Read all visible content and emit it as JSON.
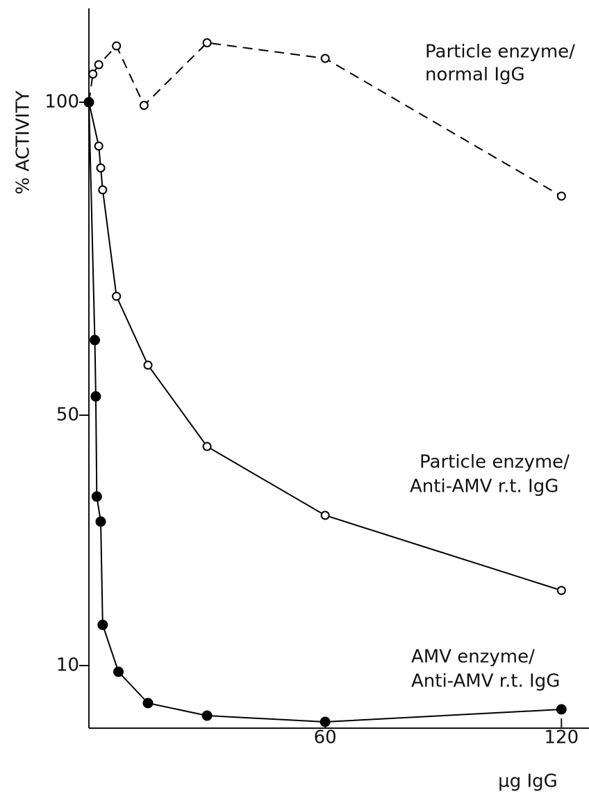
{
  "chart_data": {
    "type": "line",
    "y_label": "% ACTIVITY",
    "x_label": "µg IgG",
    "xlim": [
      0,
      127
    ],
    "xticks": [
      60,
      120
    ],
    "ylim": [
      0,
      115
    ],
    "yticks": [
      10,
      50,
      100
    ],
    "series": [
      {
        "linestyle": "dashed",
        "marker": "open",
        "color": "#000000",
        "x": [
          0,
          1,
          2.5,
          7,
          14,
          30,
          60,
          120
        ],
        "values": [
          100,
          104.5,
          106,
          109,
          99.5,
          109.5,
          107,
          85
        ]
      },
      {
        "linestyle": "solid",
        "marker": "open",
        "color": "#000000",
        "x": [
          0,
          2.5,
          3,
          3.5,
          7,
          15,
          30,
          60,
          120
        ],
        "values": [
          100,
          93,
          89.5,
          86,
          69,
          58,
          45,
          34,
          22
        ]
      },
      {
        "linestyle": "solid",
        "marker": "filled",
        "color": "#000000",
        "x": [
          0,
          1.5,
          1.75,
          2,
          3,
          3.5,
          7.5,
          15,
          30,
          60,
          120
        ],
        "values": [
          100,
          62,
          53,
          37,
          33,
          16.5,
          9,
          4,
          2,
          1,
          3
        ]
      }
    ],
    "annotations": [
      [
        "Particle enzyme/",
        "normal IgG"
      ],
      [
        "Particle enzyme/",
        "Anti-AMV r.t. IgG"
      ],
      [
        "AMV enzyme/",
        "Anti-AMV r.t. IgG"
      ]
    ]
  }
}
